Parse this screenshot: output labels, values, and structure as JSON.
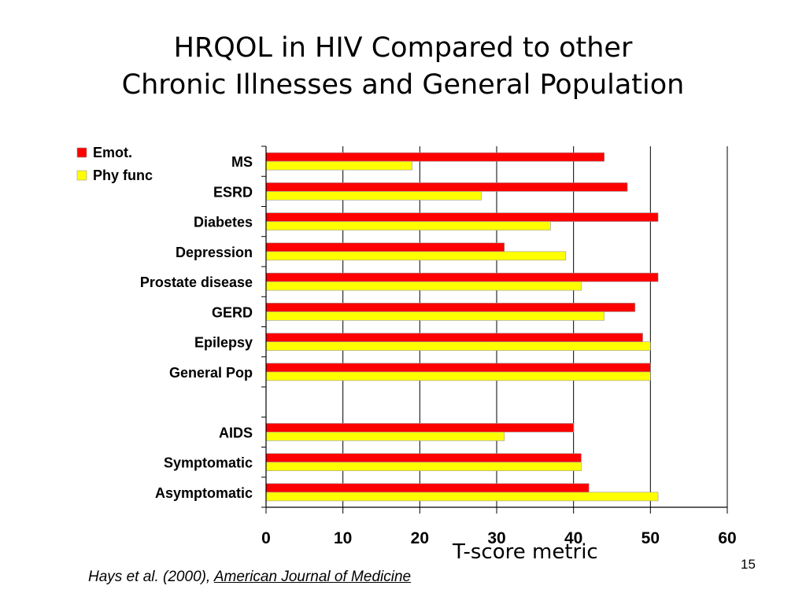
{
  "slide": {
    "title_line1": "HRQOL in HIV Compared to other",
    "title_line2": "Chronic Illnesses and General Population",
    "citation_prefix": "Hays et al. (2000), ",
    "citation_journal": "American Journal of Medicine",
    "page_number": "15"
  },
  "chart_data": {
    "type": "bar",
    "orientation": "horizontal",
    "title": "HRQOL in HIV Compared to other Chronic Illnesses and General Population",
    "xlabel": "T-score metric",
    "ylabel": "",
    "xlim": [
      0,
      60
    ],
    "x_ticks": [
      "0",
      "10",
      "20",
      "30",
      "40",
      "50",
      "60"
    ],
    "grid": true,
    "legend_position": "top-left",
    "categories": [
      "MS",
      "ESRD",
      "Diabetes",
      "Depression",
      "Prostate disease",
      "GERD",
      "Epilepsy",
      "General Pop",
      "",
      "AIDS",
      "Symptomatic",
      "Asymptomatic"
    ],
    "series": [
      {
        "name": "Emot.",
        "color": "#ff0000",
        "values": [
          44,
          47,
          51,
          31,
          51,
          48,
          49,
          50,
          null,
          40,
          41,
          42
        ]
      },
      {
        "name": "Phy func",
        "color": "#ffff00",
        "values": [
          19,
          28,
          37,
          39,
          41,
          44,
          50,
          50,
          null,
          31,
          41,
          51
        ]
      }
    ]
  }
}
